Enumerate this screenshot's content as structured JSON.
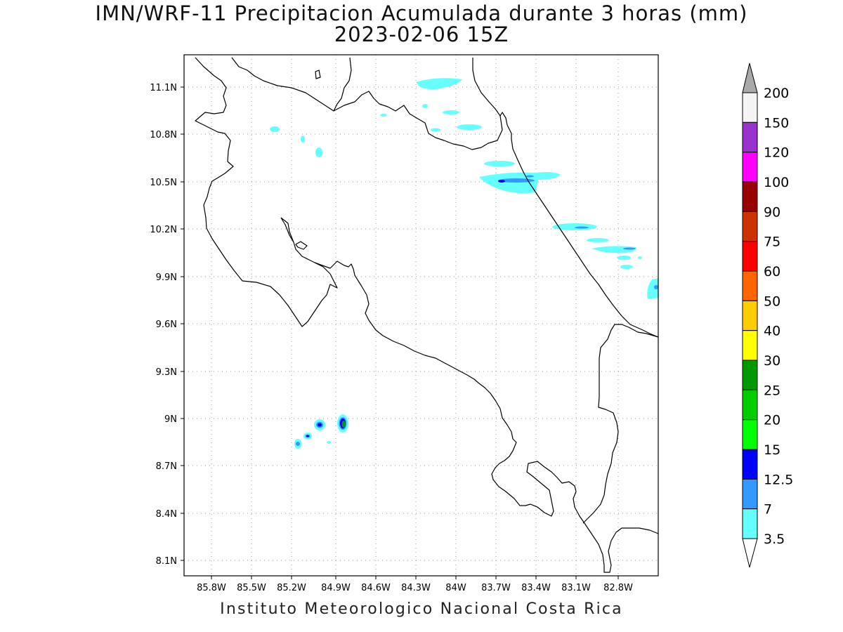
{
  "title": {
    "line1": "IMN/WRF-11 Precipitacion Acumulada durante 3 horas (mm)",
    "line2": "2023-02-06 15Z"
  },
  "footer": "Instituto Meteorologico Nacional Costa Rica",
  "map": {
    "lon_range": [
      -86.05,
      -82.68
    ],
    "lat_range": [
      8.01,
      11.29
    ],
    "lon_ticks": [
      "85.8W",
      "85.5W",
      "85.2W",
      "84.9W",
      "84.6W",
      "84.3W",
      "84W",
      "83.7W",
      "83.4W",
      "83.1W",
      "82.8W"
    ],
    "lat_ticks": [
      "11.1N",
      "10.8N",
      "10.5N",
      "10.2N",
      "9.9N",
      "9.6N",
      "9.3N",
      "9N",
      "8.7N",
      "8.4N",
      "8.1N"
    ],
    "grid": "dotted"
  },
  "colorbar": {
    "labels": [
      "200",
      "150",
      "120",
      "100",
      "90",
      "75",
      "60",
      "50",
      "40",
      "30",
      "25",
      "20",
      "15",
      "12.5",
      "7",
      "3.5"
    ],
    "colors": [
      "#f4f4f4",
      "#9933cc",
      "#ff00ff",
      "#990000",
      "#cc3300",
      "#ff0000",
      "#ff6600",
      "#ffcc00",
      "#ffff00",
      "#009900",
      "#00cc00",
      "#00ff00",
      "#0000ff",
      "#3399ff",
      "#66ffff"
    ],
    "top_arrow_color": "#a9a9a9",
    "bottom_arrow_color": "#ffffff"
  },
  "precip_colors": {
    "light": "#66ffff",
    "medium": "#3399ff",
    "heavy": "#0000ff",
    "very_heavy": "#009900"
  }
}
